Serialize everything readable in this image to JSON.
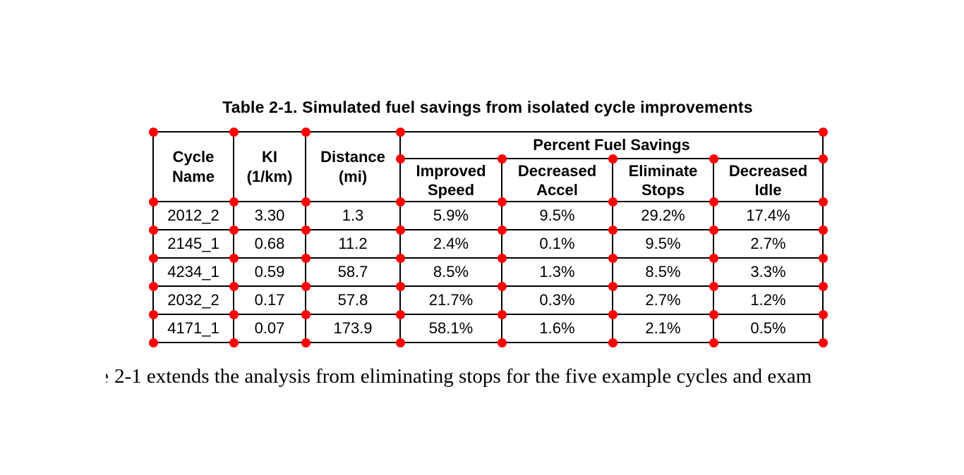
{
  "colors": {
    "background": "#ffffff",
    "text": "#000000",
    "table_border": "#000000",
    "dot": "#ff0000"
  },
  "title": "Table 2-1. Simulated fuel savings from isolated cycle improvements",
  "table": {
    "group_header": "Percent Fuel Savings",
    "columns": [
      {
        "line1": "Cycle",
        "line2": "Name"
      },
      {
        "line1": "KI",
        "line2": "(1/km)"
      },
      {
        "line1": "Distance",
        "line2": "(mi)"
      },
      {
        "line1": "Improved",
        "line2": "Speed"
      },
      {
        "line1": "Decreased",
        "line2": "Accel"
      },
      {
        "line1": "Eliminate",
        "line2": "Stops"
      },
      {
        "line1": "Decreased",
        "line2": "Idle"
      }
    ],
    "rows": [
      [
        "2012_2",
        "3.30",
        "1.3",
        "5.9%",
        "9.5%",
        "29.2%",
        "17.4%"
      ],
      [
        "2145_1",
        "0.68",
        "11.2",
        "2.4%",
        "0.1%",
        "9.5%",
        "2.7%"
      ],
      [
        "4234_1",
        "0.59",
        "58.7",
        "8.5%",
        "1.3%",
        "8.5%",
        "3.3%"
      ],
      [
        "2032_2",
        "0.17",
        "57.8",
        "21.7%",
        "0.3%",
        "2.7%",
        "1.2%"
      ],
      [
        "4171_1",
        "0.07",
        "173.9",
        "58.1%",
        "1.6%",
        "2.1%",
        "0.5%"
      ]
    ]
  },
  "body": {
    "clipped_prefix": "e",
    "text": "2-1 extends the analysis from eliminating stops for the five example cycles and exam"
  },
  "chart_data": {
    "type": "table",
    "title": "Table 2-1. Simulated fuel savings from isolated cycle improvements",
    "group_header": {
      "label": "Percent Fuel Savings",
      "spans": [
        "Improved Speed",
        "Decreased Accel",
        "Eliminate Stops",
        "Decreased Idle"
      ]
    },
    "columns": [
      "Cycle Name",
      "KI (1/km)",
      "Distance (mi)",
      "Improved Speed",
      "Decreased Accel",
      "Eliminate Stops",
      "Decreased Idle"
    ],
    "rows": [
      [
        "2012_2",
        3.3,
        1.3,
        5.9,
        9.5,
        29.2,
        17.4
      ],
      [
        "2145_1",
        0.68,
        11.2,
        2.4,
        0.1,
        9.5,
        2.7
      ],
      [
        "4234_1",
        0.59,
        58.7,
        8.5,
        1.3,
        8.5,
        3.3
      ],
      [
        "2032_2",
        0.17,
        57.8,
        21.7,
        0.3,
        2.7,
        1.2
      ],
      [
        "4171_1",
        0.07,
        173.9,
        58.1,
        1.6,
        2.1,
        0.5
      ]
    ],
    "units": {
      "percent_columns": [
        "Improved Speed",
        "Decreased Accel",
        "Eliminate Stops",
        "Decreased Idle"
      ]
    }
  }
}
